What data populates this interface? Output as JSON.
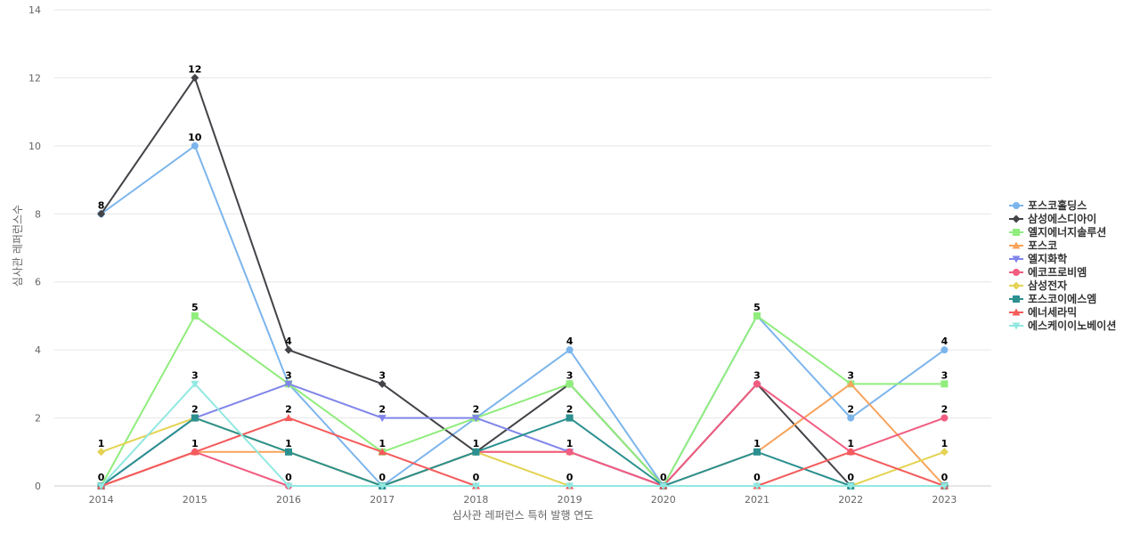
{
  "chart_data": {
    "type": "line",
    "title": "",
    "xlabel": "심사관 레퍼런스 특허 발행 연도",
    "ylabel": "심사관 레퍼런스수",
    "x": [
      "2014",
      "2015",
      "2016",
      "2017",
      "2018",
      "2019",
      "2020",
      "2021",
      "2022",
      "2023"
    ],
    "ylim": [
      0,
      14
    ],
    "yticks": [
      0,
      2,
      4,
      6,
      8,
      10,
      12,
      14
    ],
    "grid": true,
    "legend_position": "right",
    "series": [
      {
        "name": "포스코홀딩스",
        "color": "#7cb5ec",
        "marker": "circle",
        "values": [
          8,
          10,
          3,
          0,
          2,
          4,
          0,
          5,
          2,
          4
        ]
      },
      {
        "name": "삼성에스디아이",
        "color": "#434348",
        "marker": "diamond",
        "values": [
          8,
          12,
          4,
          3,
          1,
          3,
          0,
          3,
          0,
          0
        ]
      },
      {
        "name": "엘지에너지솔루션",
        "color": "#90ed7d",
        "marker": "square",
        "values": [
          0,
          5,
          3,
          1,
          2,
          3,
          0,
          5,
          3,
          3
        ]
      },
      {
        "name": "포스코",
        "color": "#f7a35c",
        "marker": "triangle",
        "values": [
          0,
          1,
          1,
          0,
          1,
          1,
          0,
          1,
          3,
          0
        ]
      },
      {
        "name": "엘지화학",
        "color": "#8085e9",
        "marker": "triangle-down",
        "values": [
          0,
          2,
          3,
          2,
          2,
          1,
          0,
          0,
          0,
          0
        ]
      },
      {
        "name": "에코프로비엠",
        "color": "#f15c80",
        "marker": "circle",
        "values": [
          0,
          1,
          0,
          0,
          1,
          1,
          0,
          3,
          1,
          2
        ]
      },
      {
        "name": "삼성전자",
        "color": "#e4d354",
        "marker": "diamond",
        "values": [
          1,
          2,
          1,
          0,
          1,
          0,
          0,
          0,
          0,
          1
        ]
      },
      {
        "name": "포스코이에스엠",
        "color": "#2b908f",
        "marker": "square",
        "values": [
          0,
          2,
          1,
          0,
          1,
          2,
          0,
          1,
          0,
          0
        ]
      },
      {
        "name": "에너세라믹",
        "color": "#f45b5b",
        "marker": "triangle",
        "values": [
          0,
          1,
          2,
          1,
          0,
          0,
          0,
          0,
          1,
          0
        ]
      },
      {
        "name": "에스케이이노베이션",
        "color": "#91e8e1",
        "marker": "triangle-down",
        "values": [
          0,
          3,
          0,
          0,
          0,
          0,
          0,
          0,
          0,
          0
        ]
      }
    ],
    "data_labels": [
      {
        "x": "2014",
        "y": 8,
        "text": "8"
      },
      {
        "x": "2014",
        "y": 1,
        "text": "1"
      },
      {
        "x": "2014",
        "y": 0,
        "text": "0"
      },
      {
        "x": "2015",
        "y": 12,
        "text": "12"
      },
      {
        "x": "2015",
        "y": 10,
        "text": "10"
      },
      {
        "x": "2015",
        "y": 5,
        "text": "5"
      },
      {
        "x": "2015",
        "y": 3,
        "text": "3"
      },
      {
        "x": "2015",
        "y": 2,
        "text": "2"
      },
      {
        "x": "2015",
        "y": 1,
        "text": "1"
      },
      {
        "x": "2016",
        "y": 4,
        "text": "4"
      },
      {
        "x": "2016",
        "y": 3,
        "text": "3"
      },
      {
        "x": "2016",
        "y": 2,
        "text": "2"
      },
      {
        "x": "2016",
        "y": 1,
        "text": "1"
      },
      {
        "x": "2016",
        "y": 0,
        "text": "0"
      },
      {
        "x": "2017",
        "y": 3,
        "text": "3"
      },
      {
        "x": "2017",
        "y": 2,
        "text": "2"
      },
      {
        "x": "2017",
        "y": 1,
        "text": "1"
      },
      {
        "x": "2017",
        "y": 0,
        "text": "0"
      },
      {
        "x": "2018",
        "y": 2,
        "text": "2"
      },
      {
        "x": "2018",
        "y": 1,
        "text": "1"
      },
      {
        "x": "2018",
        "y": 0,
        "text": "0"
      },
      {
        "x": "2019",
        "y": 4,
        "text": "4"
      },
      {
        "x": "2019",
        "y": 3,
        "text": "3"
      },
      {
        "x": "2019",
        "y": 2,
        "text": "2"
      },
      {
        "x": "2019",
        "y": 1,
        "text": "1"
      },
      {
        "x": "2019",
        "y": 0,
        "text": "0"
      },
      {
        "x": "2020",
        "y": 0,
        "text": "0"
      },
      {
        "x": "2021",
        "y": 5,
        "text": "5"
      },
      {
        "x": "2021",
        "y": 3,
        "text": "3"
      },
      {
        "x": "2021",
        "y": 1,
        "text": "1"
      },
      {
        "x": "2021",
        "y": 0,
        "text": "0"
      },
      {
        "x": "2022",
        "y": 3,
        "text": "3"
      },
      {
        "x": "2022",
        "y": 2,
        "text": "2"
      },
      {
        "x": "2022",
        "y": 1,
        "text": "1"
      },
      {
        "x": "2022",
        "y": 0,
        "text": "0"
      },
      {
        "x": "2023",
        "y": 4,
        "text": "4"
      },
      {
        "x": "2023",
        "y": 3,
        "text": "3"
      },
      {
        "x": "2023",
        "y": 2,
        "text": "2"
      },
      {
        "x": "2023",
        "y": 1,
        "text": "1"
      },
      {
        "x": "2023",
        "y": 0,
        "text": "0"
      }
    ]
  }
}
